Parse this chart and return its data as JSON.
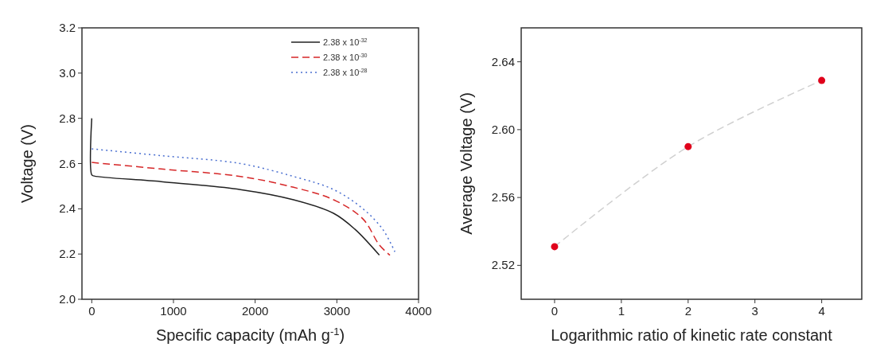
{
  "chart_data": [
    {
      "type": "line",
      "xlabel": "Specific capacity (mAh g$^{-1}$)",
      "ylabel": "Voltage (V)",
      "xlim": [
        -120,
        4000
      ],
      "ylim": [
        2.0,
        3.2
      ],
      "xticks": [
        0,
        1000,
        2000,
        3000,
        4000
      ],
      "yticks": [
        {
          "value": 2.0,
          "label": "2.0"
        },
        2.2,
        2.4,
        2.6,
        2.8,
        {
          "value": 3.0,
          "label": "3.0"
        },
        3.2
      ],
      "legend": "top right",
      "grid": false,
      "series": [
        {
          "name": "2.38 x 10$^{-32}$",
          "color": "#222222",
          "line_style": "solid",
          "x": [
            0,
            0,
            30,
            850,
            1820,
            2470,
            2960,
            3220,
            3520
          ],
          "values": [
            2.8,
            2.55,
            2.545,
            2.52,
            2.485,
            2.44,
            2.38,
            2.31,
            2.195
          ]
        },
        {
          "name": "2.38 x 10$^{-30}$",
          "color": "#d62728",
          "line_style": "dashed",
          "x": [
            0,
            850,
            1820,
            2470,
            2960,
            3320,
            3520,
            3650
          ],
          "values": [
            2.605,
            2.576,
            2.543,
            2.495,
            2.44,
            2.355,
            2.24,
            2.195
          ]
        },
        {
          "name": "2.38 x 10$^{-28}$",
          "color": "#4a6fd0",
          "line_style": "dotted",
          "x": [
            0,
            850,
            1820,
            2470,
            2960,
            3320,
            3560,
            3710
          ],
          "values": [
            2.665,
            2.635,
            2.6,
            2.543,
            2.485,
            2.4,
            2.31,
            2.21
          ]
        }
      ]
    },
    {
      "type": "scatter",
      "xlabel": "Logarithmic ratio of kinetic rate constant",
      "ylabel": "Average Voltage (V)",
      "xlim": [
        -0.5,
        4.6
      ],
      "ylim": [
        2.5,
        2.66
      ],
      "xticks": [
        0,
        1,
        2,
        3,
        4
      ],
      "yticks": [
        2.52,
        2.56,
        {
          "value": 2.6,
          "label": "2.60"
        },
        2.64
      ],
      "grid": false,
      "series": [
        {
          "type": "line",
          "color": "#d0d0d0",
          "line_style": "dashed",
          "marker": "none",
          "x": [
            0,
            2,
            4
          ],
          "values": [
            2.531,
            2.59,
            2.629
          ]
        },
        {
          "color": "#e0001b",
          "marker": "circle",
          "x": [
            0,
            2,
            4
          ],
          "values": [
            2.531,
            2.59,
            2.629
          ]
        }
      ]
    }
  ]
}
